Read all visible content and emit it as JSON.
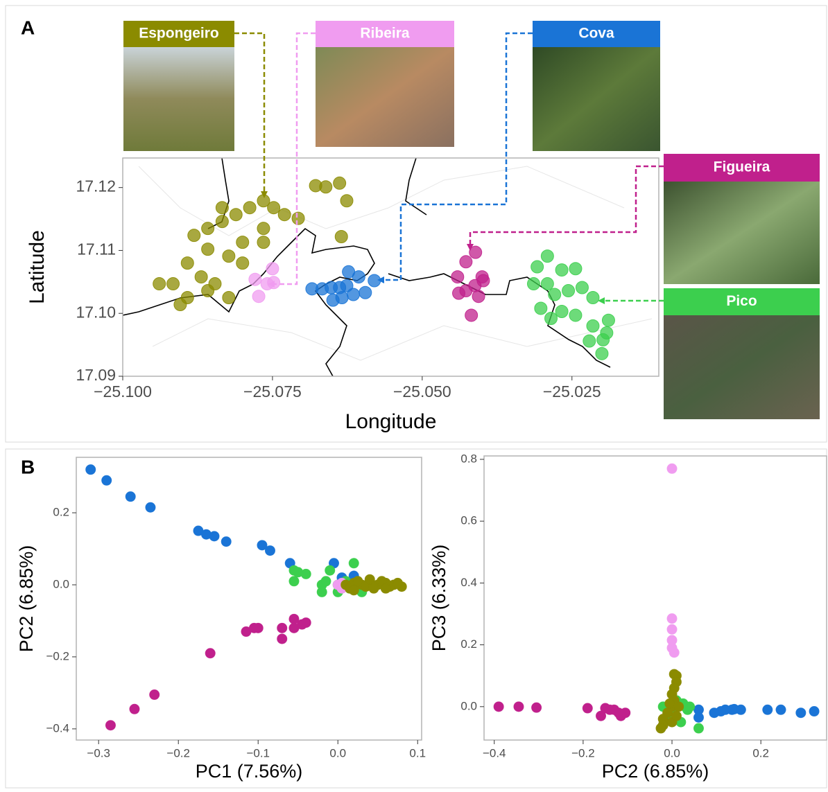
{
  "chart_data": [
    {
      "type": "scatter",
      "panel": "A",
      "x_label": "Longitude",
      "y_label": "Latitude",
      "xlim": [
        -25.1,
        -25.0105
      ],
      "ylim": [
        17.09,
        17.1247
      ],
      "xticks": [
        {
          "value": -25.1,
          "label": "−25.100"
        },
        {
          "value": -25.075,
          "label": "−25.075"
        },
        {
          "value": -25.05,
          "label": "−25.050"
        },
        {
          "value": -25.025,
          "label": "−25.025"
        }
      ],
      "yticks": [
        {
          "value": 17.09,
          "label": "17.09"
        },
        {
          "value": 17.1,
          "label": "17.10"
        },
        {
          "value": 17.11,
          "label": "17.11"
        },
        {
          "value": 17.12,
          "label": "17.12"
        }
      ],
      "series": [
        {
          "name": "Espongeiro",
          "color": "#8b8b00",
          "x": [
            -25.0765,
            -25.0748,
            -25.0788,
            -25.0811,
            -25.0834,
            -25.0858,
            -25.0881,
            -25.0858,
            -25.0823,
            -25.08,
            -25.0892,
            -25.0869,
            -25.0846,
            -25.0916,
            -25.0939,
            -25.0892,
            -25.0858,
            -25.0823,
            -25.0904,
            -25.08,
            -25.0765,
            -25.073,
            -25.0707,
            -25.0661,
            -25.0638,
            -25.0626,
            -25.0635,
            -25.0678,
            -25.0834,
            -25.0765
          ],
          "y": [
            17.1179,
            17.1168,
            17.1168,
            17.1157,
            17.1146,
            17.1135,
            17.1124,
            17.1102,
            17.1091,
            17.108,
            17.108,
            17.1058,
            17.1047,
            17.1047,
            17.1047,
            17.1025,
            17.1036,
            17.1025,
            17.1014,
            17.1113,
            17.1113,
            17.1157,
            17.1151,
            17.1201,
            17.1207,
            17.1179,
            17.1122,
            17.1203,
            17.1168,
            17.1135
          ]
        },
        {
          "name": "Ribeira",
          "color": "#f09cf0",
          "x": [
            -25.0779,
            -25.075,
            -25.0748,
            -25.0773,
            -25.0759
          ],
          "y": [
            17.1054,
            17.1071,
            17.1049,
            17.1027,
            17.1047
          ]
        },
        {
          "name": "Cova",
          "color": "#1a74d6",
          "x": [
            -25.0684,
            -25.0667,
            -25.0649,
            -25.0634,
            -25.0623,
            -25.0606,
            -25.0595,
            -25.058,
            -25.0638,
            -25.0615,
            -25.0652,
            -25.0626
          ],
          "y": [
            17.1039,
            17.1039,
            17.1021,
            17.1025,
            17.1066,
            17.1058,
            17.1033,
            17.1052,
            17.1041,
            17.103,
            17.1041,
            17.1044
          ]
        },
        {
          "name": "Figueira",
          "color": "#c0208c",
          "x": [
            -25.0411,
            -25.0427,
            -25.0441,
            -25.0427,
            -25.0412,
            -25.04,
            -25.0439,
            -25.0418,
            -25.0406,
            -25.0398
          ],
          "y": [
            17.1097,
            17.1082,
            17.1058,
            17.1036,
            17.1044,
            17.1058,
            17.1032,
            17.0997,
            17.1027,
            17.1052
          ]
        },
        {
          "name": "Pico",
          "color": "#3ccf4e",
          "x": [
            -25.0291,
            -25.0308,
            -25.0267,
            -25.0244,
            -25.0291,
            -25.0314,
            -25.0233,
            -25.0215,
            -25.0279,
            -25.0302,
            -25.0267,
            -25.0285,
            -25.0244,
            -25.0215,
            -25.0189,
            -25.0198,
            -25.0221,
            -25.02,
            -25.0192,
            -25.0256
          ],
          "y": [
            17.1091,
            17.1074,
            17.1069,
            17.1071,
            17.1047,
            17.1047,
            17.1041,
            17.1025,
            17.103,
            17.1008,
            17.1003,
            17.0992,
            17.0997,
            17.098,
            17.0989,
            17.0958,
            17.0956,
            17.0936,
            17.0969,
            17.1036
          ]
        }
      ]
    },
    {
      "type": "scatter",
      "panel": "B",
      "x_label": "PC1 (7.56%)",
      "y_label": "PC2 (6.85%)",
      "xlim": [
        -0.328,
        0.105
      ],
      "ylim": [
        -0.431,
        0.354
      ],
      "xticks": [
        {
          "value": -0.3,
          "label": "−0.3"
        },
        {
          "value": -0.2,
          "label": "−0.2"
        },
        {
          "value": -0.1,
          "label": "−0.1"
        },
        {
          "value": 0,
          "label": "0.0"
        },
        0.1
      ],
      "yticks": [
        {
          "value": -0.4,
          "label": "−0.4"
        },
        {
          "value": -0.2,
          "label": "−0.2"
        },
        {
          "value": 0,
          "label": "0.0"
        },
        0.2
      ],
      "series": [
        {
          "color": "#1a74d6",
          "x": [
            -0.31,
            -0.29,
            -0.26,
            -0.235,
            -0.175,
            -0.165,
            -0.155,
            -0.14,
            -0.095,
            -0.085,
            -0.06,
            -0.005,
            0.005,
            0.02
          ],
          "y": [
            0.32,
            0.29,
            0.245,
            0.215,
            0.15,
            0.14,
            0.135,
            0.12,
            0.11,
            0.095,
            0.06,
            0.06,
            0.02,
            0.025
          ]
        },
        {
          "color": "#c0208c",
          "x": [
            -0.285,
            -0.255,
            -0.23,
            -0.16,
            -0.115,
            -0.105,
            -0.1,
            -0.07,
            -0.07,
            -0.055,
            -0.055,
            -0.045,
            -0.04
          ],
          "y": [
            -0.39,
            -0.345,
            -0.305,
            -0.19,
            -0.13,
            -0.12,
            -0.12,
            -0.12,
            -0.15,
            -0.095,
            -0.12,
            -0.11,
            -0.105
          ]
        },
        {
          "color": "#3ccf4e",
          "x": [
            -0.055,
            -0.05,
            -0.04,
            -0.055,
            -0.02,
            -0.02,
            -0.015,
            0,
            0.01,
            0.02,
            0.03,
            -0.01,
            0,
            0.015
          ],
          "y": [
            0.04,
            0.035,
            0.03,
            0.01,
            0,
            -0.02,
            0.01,
            0,
            0.01,
            0.06,
            -0.02,
            0.04,
            -0.02,
            -0.01
          ]
        },
        {
          "color": "#f09cf0",
          "x": [
            0,
            0.005,
            0.01,
            0.005
          ],
          "y": [
            0,
            0.005,
            -0.005,
            -0.01
          ]
        },
        {
          "color": "#8b8b00",
          "x": [
            0.01,
            0.02,
            0.03,
            0.04,
            0.05,
            0.06,
            0.07,
            0.08,
            0.015,
            0.025,
            0.035,
            0.045,
            0.055,
            0.065,
            0.075,
            0.02,
            0.04,
            0.06
          ],
          "y": [
            0,
            0.005,
            0,
            0.01,
            0,
            0.005,
            0,
            -0.005,
            -0.01,
            0.01,
            -0.005,
            -0.01,
            0.01,
            -0.005,
            0.005,
            -0.015,
            0.015,
            -0.01
          ]
        }
      ]
    },
    {
      "type": "scatter",
      "x_label": "PC2 (6.85%)",
      "y_label": "PC3 (6.33%)",
      "xlim": [
        -0.423,
        0.348
      ],
      "ylim": [
        -0.108,
        0.811
      ],
      "xticks": [
        {
          "value": -0.4,
          "label": "−0.4"
        },
        {
          "value": -0.2,
          "label": "−0.2"
        },
        {
          "value": 0,
          "label": "0.0"
        },
        0.2
      ],
      "yticks": [
        {
          "value": 0,
          "label": "0.0"
        },
        0.2,
        0.4,
        0.6,
        0.8
      ],
      "series": [
        {
          "color": "#c0208c",
          "x": [
            -0.39,
            -0.345,
            -0.305,
            -0.19,
            -0.15,
            -0.14,
            -0.13,
            -0.12,
            -0.115,
            -0.105,
            -0.16
          ],
          "y": [
            0,
            0,
            -0.003,
            -0.005,
            -0.005,
            -0.01,
            -0.01,
            -0.02,
            -0.03,
            -0.02,
            -0.03
          ]
        },
        {
          "color": "#1a74d6",
          "x": [
            0.32,
            0.29,
            0.245,
            0.215,
            0.155,
            0.14,
            0.135,
            0.12,
            0.11,
            0.095,
            0.06,
            0.06
          ],
          "y": [
            -0.015,
            -0.02,
            -0.01,
            -0.01,
            -0.01,
            -0.008,
            -0.01,
            -0.01,
            -0.015,
            -0.02,
            -0.01,
            -0.035
          ]
        },
        {
          "color": "#f09cf0",
          "x": [
            0,
            0,
            0,
            0,
            0,
            0.005
          ],
          "y": [
            0.77,
            0.285,
            0.25,
            0.215,
            0.19,
            0.175
          ]
        },
        {
          "color": "#3ccf4e",
          "x": [
            0.04,
            0.035,
            0.03,
            0.01,
            0,
            -0.02,
            0.01,
            0.06,
            0.02,
            -0.01,
            0.025
          ],
          "y": [
            0,
            -0.01,
            0,
            0,
            -0.02,
            0,
            0.02,
            -0.07,
            -0.05,
            -0.03,
            0.01
          ]
        },
        {
          "color": "#8b8b00",
          "x": [
            0.005,
            0.01,
            0.01,
            0.005,
            0,
            0.005,
            0,
            -0.01,
            -0.02,
            -0.02,
            -0.025,
            0,
            0.01,
            -0.005,
            0.015
          ],
          "y": [
            0.105,
            0.1,
            0.08,
            0.06,
            0.04,
            0.02,
            0,
            -0.02,
            -0.04,
            -0.06,
            -0.07,
            -0.05,
            -0.03,
            0.01,
            0
          ]
        }
      ]
    }
  ]
}
